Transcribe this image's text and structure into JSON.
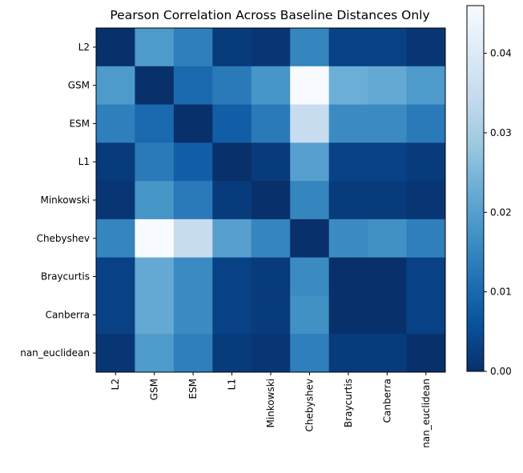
{
  "chart_data": {
    "type": "heatmap",
    "title": "Pearson Correlation Across Baseline Distances Only",
    "row_labels": [
      "L2",
      "GSM",
      "ESM",
      "L1",
      "Minkowski",
      "Chebyshev",
      "Braycurtis",
      "Canberra",
      "nan_euclidean"
    ],
    "col_labels": [
      "L2",
      "GSM",
      "ESM",
      "L1",
      "Minkowski",
      "Chebyshev",
      "Braycurtis",
      "Canberra",
      "nan_euclidean"
    ],
    "values": [
      [
        0.0,
        0.019,
        0.014,
        0.002,
        0.001,
        0.015,
        0.003,
        0.003,
        0.001
      ],
      [
        0.019,
        0.0,
        0.01,
        0.013,
        0.018,
        0.046,
        0.023,
        0.022,
        0.019
      ],
      [
        0.014,
        0.01,
        0.0,
        0.008,
        0.013,
        0.035,
        0.016,
        0.016,
        0.013
      ],
      [
        0.002,
        0.013,
        0.008,
        0.0,
        0.002,
        0.02,
        0.003,
        0.003,
        0.002
      ],
      [
        0.001,
        0.018,
        0.013,
        0.002,
        0.0,
        0.015,
        0.002,
        0.002,
        0.001
      ],
      [
        0.015,
        0.046,
        0.035,
        0.02,
        0.015,
        0.0,
        0.016,
        0.017,
        0.014
      ],
      [
        0.003,
        0.022,
        0.016,
        0.003,
        0.002,
        0.016,
        0.0,
        0.0,
        0.003
      ],
      [
        0.003,
        0.022,
        0.016,
        0.003,
        0.002,
        0.017,
        0.0,
        0.0,
        0.003
      ],
      [
        0.001,
        0.019,
        0.014,
        0.002,
        0.001,
        0.014,
        0.002,
        0.002,
        0.0
      ]
    ],
    "vmin": 0.0,
    "vmax": 0.046,
    "colormap": "Blues_r",
    "colorbar_ticks": [
      "0.00",
      "0.01",
      "0.02",
      "0.03",
      "0.04"
    ],
    "colorbar_tick_values": [
      0.0,
      0.01,
      0.02,
      0.03,
      0.04
    ],
    "grid": false,
    "colorbar_position": "right"
  }
}
